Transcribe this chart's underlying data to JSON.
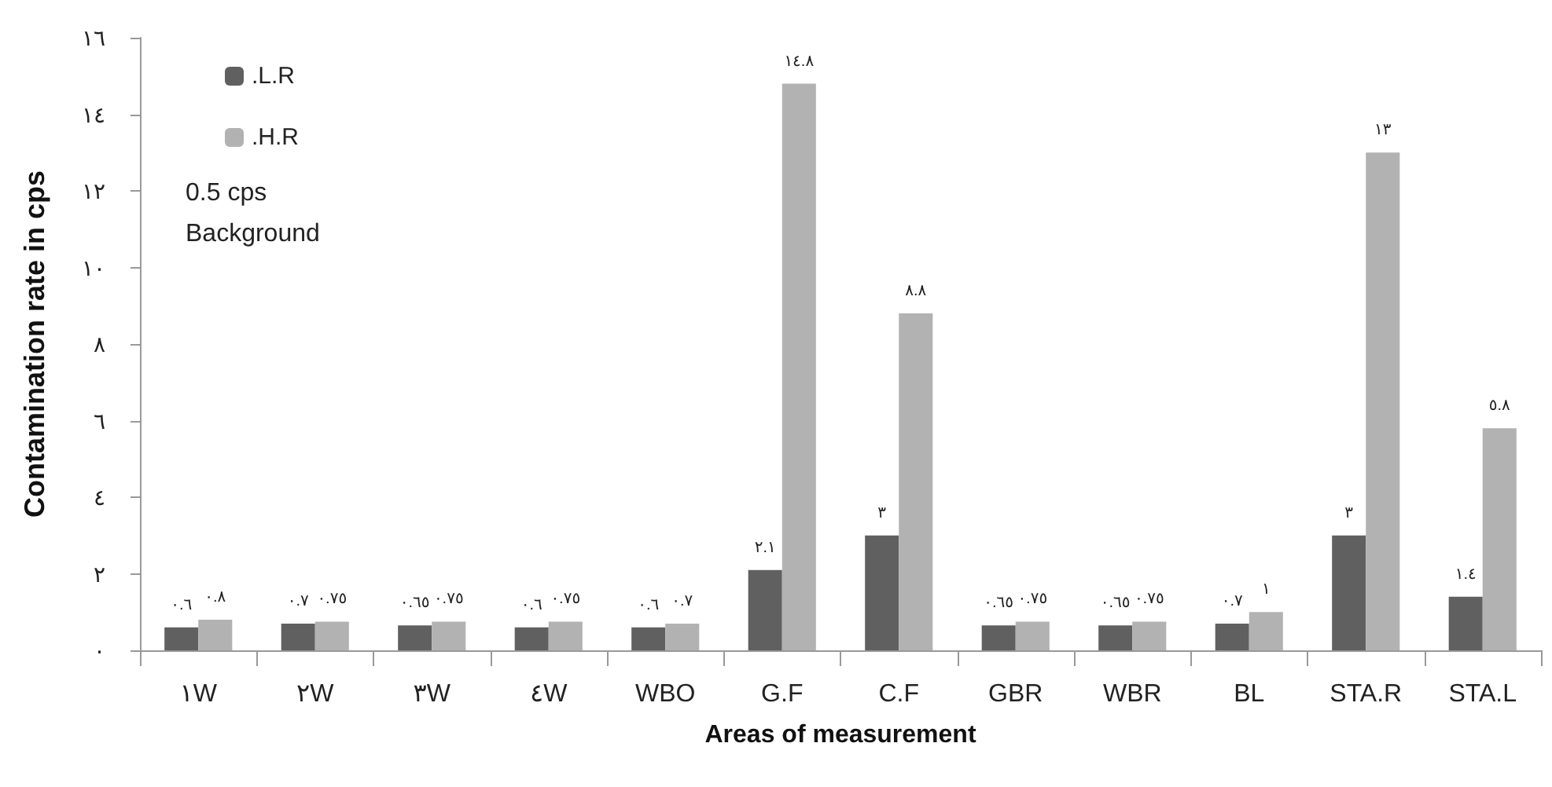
{
  "chart_data": {
    "type": "bar",
    "xlabel": "Areas of measurement",
    "ylabel": "Contamination rate in cps",
    "categories": [
      "١W",
      "٢W",
      "٣W",
      "٤W",
      "WBO",
      "G.F",
      "C.F",
      "GBR",
      "WBR",
      "BL",
      "STA.R",
      "STA.L"
    ],
    "series": [
      {
        "name": ".L.R",
        "color": "#606060",
        "values": [
          0.6,
          0.7,
          0.65,
          0.6,
          0.6,
          2.1,
          3,
          0.65,
          0.65,
          0.7,
          3,
          1.4
        ],
        "value_labels": [
          "٠.٦",
          "٠.٧",
          "٠.٦٥",
          "٠.٦",
          "٠.٦",
          "٢.١",
          "٣",
          "٠.٦٥",
          "٠.٦٥",
          "٠.٧",
          "٣",
          "١.٤"
        ]
      },
      {
        "name": ".H.R",
        "color": "#b2b2b2",
        "values": [
          0.8,
          0.75,
          0.75,
          0.75,
          0.7,
          14.8,
          8.8,
          0.75,
          0.75,
          1,
          13,
          5.8
        ],
        "value_labels": [
          "٠.٨",
          "٠.٧٥",
          "٠.٧٥",
          "٠.٧٥",
          "٠.٧",
          "١٤.٨",
          "٨.٨",
          "٠.٧٥",
          "٠.٧٥",
          "١",
          "١٣",
          "٥.٨"
        ]
      }
    ],
    "ylim": [
      0,
      16
    ],
    "yticks": [
      {
        "value": 0,
        "label": "٠"
      },
      {
        "value": 2,
        "label": "٢"
      },
      {
        "value": 4,
        "label": "٤"
      },
      {
        "value": 6,
        "label": "٦"
      },
      {
        "value": 8,
        "label": "٨"
      },
      {
        "value": 10,
        "label": "١٠"
      },
      {
        "value": 12,
        "label": "١٢"
      },
      {
        "value": 14,
        "label": "١٤"
      },
      {
        "value": 16,
        "label": "١٦"
      }
    ],
    "annotations": [
      "0.5 cps\nBackground"
    ],
    "grid": false,
    "legend": "top left"
  }
}
